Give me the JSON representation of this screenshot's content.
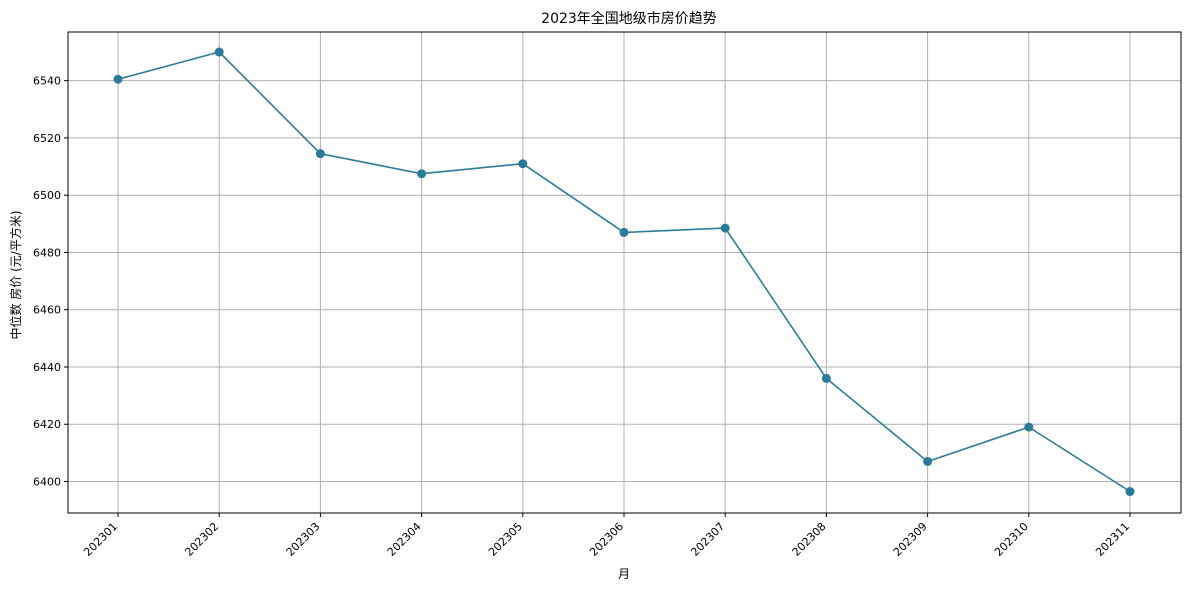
{
  "chart_data": {
    "type": "line",
    "title": "2023年全国地级市房价趋势",
    "xlabel": "月",
    "ylabel": "中位数 房价 (元/平方米)",
    "categories": [
      "202301",
      "202302",
      "202303",
      "202304",
      "202305",
      "202306",
      "202307",
      "202308",
      "202309",
      "202310",
      "202311"
    ],
    "series": [
      {
        "values": [
          6540.5,
          6550.0,
          6514.5,
          6507.5,
          6511.0,
          6487.0,
          6488.5,
          6436.0,
          6407.0,
          6419.0,
          6396.5
        ]
      }
    ],
    "ylim": [
      6389,
      6557
    ],
    "yticks": [
      6400,
      6420,
      6440,
      6460,
      6480,
      6500,
      6520,
      6540
    ],
    "grid": true,
    "line_color": "#2a7b9b",
    "marker_color": "#2a7b9b"
  }
}
